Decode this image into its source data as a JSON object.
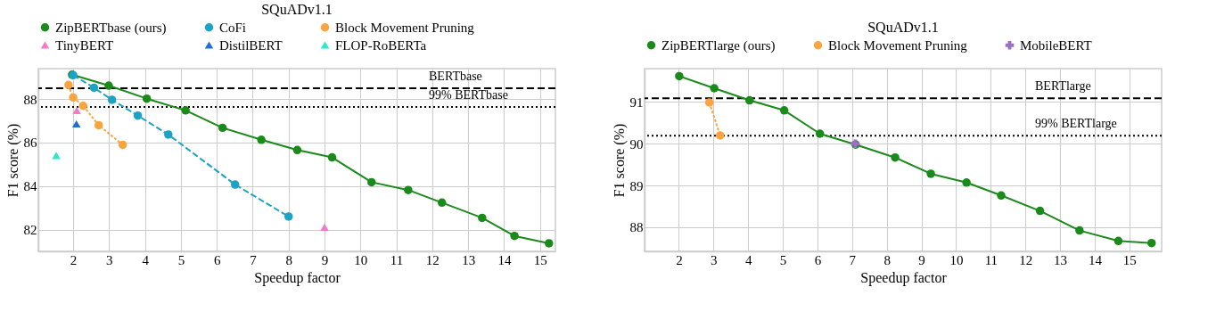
{
  "chart_data": [
    {
      "type": "line",
      "title": "SQuADv1.1",
      "xlabel": "Speedup factor",
      "ylabel": "F1 score (%)",
      "xlim": [
        1.03,
        15.43
      ],
      "ylim": [
        81.0,
        89.4
      ],
      "xticks": [
        2,
        3,
        4,
        5,
        6,
        7,
        8,
        9,
        10,
        11,
        12,
        13,
        14,
        15
      ],
      "yticks": [
        82,
        84,
        86,
        88
      ],
      "grid": true,
      "legend": "top",
      "series": [
        {
          "name": "ZipBERTbase (ours)",
          "color": "#1a8a1a",
          "type": "line",
          "line_style": "solid",
          "marker": "circle",
          "x": [
            1.97,
            2.99,
            4.05,
            5.13,
            6.16,
            7.24,
            8.24,
            9.21,
            10.31,
            11.33,
            12.27,
            13.39,
            14.29,
            15.25
          ],
          "values": [
            89.12,
            88.62,
            88.02,
            87.48,
            86.68,
            86.13,
            85.66,
            85.32,
            84.18,
            83.82,
            83.24,
            82.54,
            81.71,
            81.37
          ]
        },
        {
          "name": "CoFi",
          "color": "#1ba3c6",
          "type": "line",
          "line_style": "dashed",
          "marker": "circle",
          "x": [
            2.0,
            2.58,
            3.08,
            3.8,
            4.65,
            6.51,
            8.0
          ],
          "values": [
            89.1,
            88.52,
            87.97,
            87.24,
            86.37,
            84.07,
            82.6
          ]
        },
        {
          "name": "Block Movement Pruning",
          "color": "#f9a43e",
          "type": "line",
          "line_style": "dotted",
          "marker": "circle",
          "x": [
            1.87,
            2.0,
            2.28,
            2.71,
            3.38
          ],
          "values": [
            88.65,
            88.07,
            87.69,
            86.8,
            85.9
          ]
        },
        {
          "name": "TinyBERT",
          "color": "#f07cc8",
          "type": "scatter",
          "marker": "triangle",
          "x": [
            2.1,
            9.0
          ],
          "values": [
            87.48,
            82.11
          ]
        },
        {
          "name": "DistilBERT",
          "color": "#1f6fd1",
          "type": "scatter",
          "marker": "triangle",
          "x": [
            2.09
          ],
          "values": [
            86.86
          ]
        },
        {
          "name": "FLOP-RoBERTa",
          "color": "#2ee8c8",
          "type": "scatter",
          "marker": "triangle",
          "x": [
            1.53
          ],
          "values": [
            85.41
          ]
        }
      ],
      "ref_lines": [
        {
          "axis": "y",
          "value": 88.5,
          "label": "BERTbase",
          "color": "#000000",
          "line_style": "dashed"
        },
        {
          "axis": "y",
          "value": 87.64,
          "label": "99% BERTbase",
          "color": "#000000",
          "line_style": "dotted"
        }
      ]
    },
    {
      "type": "line",
      "title": "SQuADv1.1",
      "xlabel": "Speedup factor",
      "ylabel": "F1 score (%)",
      "xlim": [
        1.01,
        15.93
      ],
      "ylim": [
        87.42,
        91.8
      ],
      "xticks": [
        2,
        3,
        4,
        5,
        6,
        7,
        8,
        9,
        10,
        11,
        12,
        13,
        14,
        15
      ],
      "yticks": [
        88,
        89,
        90,
        91
      ],
      "grid": true,
      "legend": "top",
      "series": [
        {
          "name": "ZipBERTlarge (ours)",
          "color": "#1a8a1a",
          "type": "line",
          "line_style": "solid",
          "marker": "circle",
          "x": [
            2.01,
            3.02,
            4.04,
            5.04,
            6.07,
            7.1,
            8.24,
            9.27,
            10.3,
            11.3,
            12.42,
            13.56,
            14.68,
            15.64
          ],
          "values": [
            91.62,
            91.33,
            91.04,
            90.8,
            90.24,
            89.98,
            89.67,
            89.28,
            89.07,
            88.76,
            88.39,
            87.92,
            87.67,
            87.62
          ]
        },
        {
          "name": "Block Movement Pruning",
          "color": "#f9a43e",
          "type": "line",
          "line_style": "dotted",
          "marker": "circle",
          "x": [
            2.88,
            3.19
          ],
          "values": [
            90.99,
            90.2
          ]
        },
        {
          "name": "MobileBERT",
          "color": "#9b6fc4",
          "type": "scatter",
          "marker": "cross",
          "x": [
            7.09
          ],
          "values": [
            90.0
          ]
        }
      ],
      "ref_lines": [
        {
          "axis": "y",
          "value": 91.09,
          "label": "BERTlarge",
          "color": "#000000",
          "line_style": "dashed"
        },
        {
          "axis": "y",
          "value": 90.19,
          "label": "99% BERTlarge",
          "color": "#000000",
          "line_style": "dotted"
        }
      ]
    }
  ]
}
